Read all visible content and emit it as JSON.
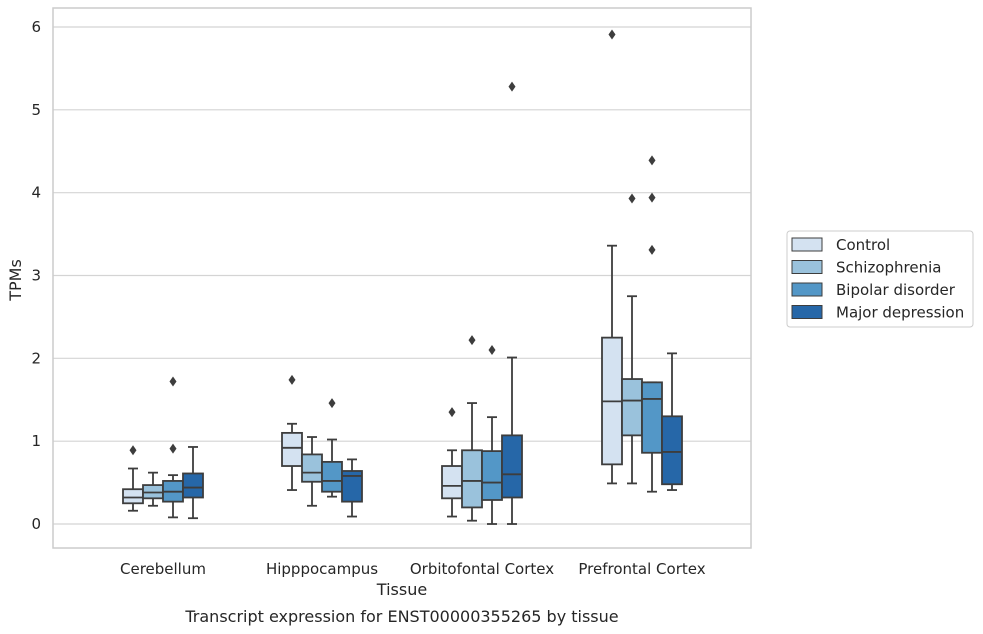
{
  "caption": "Transcript expression for ENST00000355265 by tissue",
  "chart_data": {
    "type": "box",
    "xlabel": "Tissue",
    "ylabel": "TPMs",
    "ylim": [
      -0.28,
      6.22
    ],
    "yticks": [
      0,
      1,
      2,
      3,
      4,
      5,
      6
    ],
    "grid": "horizontal",
    "legend_position": "right",
    "categories": [
      "Cerebellum",
      "Hipppocampus",
      "Orbitofontal Cortex",
      "Prefrontal Cortex"
    ],
    "series": [
      {
        "name": "Control",
        "color": "#d4e2f1",
        "boxes": [
          {
            "whisker_low": 0.16,
            "q1": 0.25,
            "median": 0.32,
            "q3": 0.42,
            "whisker_high": 0.67,
            "outliers": [
              0.89
            ]
          },
          {
            "whisker_low": 0.41,
            "q1": 0.7,
            "median": 0.92,
            "q3": 1.1,
            "whisker_high": 1.21,
            "outliers": [
              1.74
            ]
          },
          {
            "whisker_low": 0.09,
            "q1": 0.31,
            "median": 0.46,
            "q3": 0.7,
            "whisker_high": 0.89,
            "outliers": [
              1.35
            ]
          },
          {
            "whisker_low": 0.49,
            "q1": 0.72,
            "median": 1.48,
            "q3": 2.25,
            "whisker_high": 3.36,
            "outliers": [
              5.91
            ]
          }
        ]
      },
      {
        "name": "Schizophrenia",
        "color": "#9ac2dc",
        "boxes": [
          {
            "whisker_low": 0.22,
            "q1": 0.31,
            "median": 0.38,
            "q3": 0.47,
            "whisker_high": 0.62,
            "outliers": []
          },
          {
            "whisker_low": 0.22,
            "q1": 0.51,
            "median": 0.62,
            "q3": 0.84,
            "whisker_high": 1.05,
            "outliers": []
          },
          {
            "whisker_low": 0.04,
            "q1": 0.2,
            "median": 0.52,
            "q3": 0.89,
            "whisker_high": 1.46,
            "outliers": [
              2.22
            ]
          },
          {
            "whisker_low": 0.49,
            "q1": 1.07,
            "median": 1.49,
            "q3": 1.75,
            "whisker_high": 2.75,
            "outliers": [
              3.93
            ]
          }
        ]
      },
      {
        "name": "Bipolar disorder",
        "color": "#5397c7",
        "boxes": [
          {
            "whisker_low": 0.08,
            "q1": 0.27,
            "median": 0.39,
            "q3": 0.52,
            "whisker_high": 0.59,
            "outliers": [
              0.91,
              1.72
            ]
          },
          {
            "whisker_low": 0.33,
            "q1": 0.39,
            "median": 0.52,
            "q3": 0.75,
            "whisker_high": 1.02,
            "outliers": [
              1.46
            ]
          },
          {
            "whisker_low": 0.0,
            "q1": 0.29,
            "median": 0.5,
            "q3": 0.88,
            "whisker_high": 1.29,
            "outliers": [
              2.1
            ]
          },
          {
            "whisker_low": 0.39,
            "q1": 0.86,
            "median": 1.51,
            "q3": 1.71,
            "whisker_high": 1.71,
            "outliers": [
              3.31,
              3.94,
              4.39
            ]
          }
        ]
      },
      {
        "name": "Major depression",
        "color": "#2667a8",
        "boxes": [
          {
            "whisker_low": 0.07,
            "q1": 0.32,
            "median": 0.44,
            "q3": 0.61,
            "whisker_high": 0.93,
            "outliers": []
          },
          {
            "whisker_low": 0.09,
            "q1": 0.27,
            "median": 0.58,
            "q3": 0.64,
            "whisker_high": 0.78,
            "outliers": []
          },
          {
            "whisker_low": 0.0,
            "q1": 0.32,
            "median": 0.6,
            "q3": 1.07,
            "whisker_high": 2.01,
            "outliers": [
              5.28
            ]
          },
          {
            "whisker_low": 0.41,
            "q1": 0.48,
            "median": 0.87,
            "q3": 1.3,
            "whisker_high": 2.06,
            "outliers": []
          }
        ]
      }
    ]
  }
}
